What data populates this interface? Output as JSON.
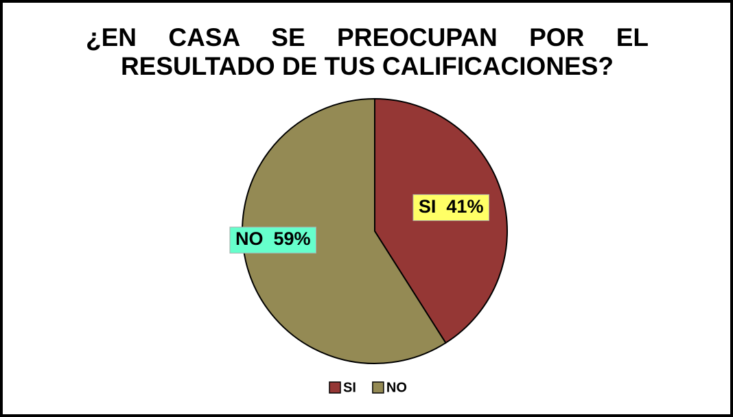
{
  "chart_data": {
    "type": "pie",
    "title": "¿EN CASA SE PREOCUPAN POR EL RESULTADO DE TUS CALIFICACIONES?",
    "categories": [
      "SI",
      "NO"
    ],
    "values": [
      41,
      59
    ],
    "value_labels": [
      "SI  41%",
      "NO  59%"
    ],
    "colors": [
      "#953735",
      "#948a54"
    ],
    "label_backgrounds": [
      "#ffff66",
      "#66ffcc"
    ],
    "legend": "bottom"
  }
}
